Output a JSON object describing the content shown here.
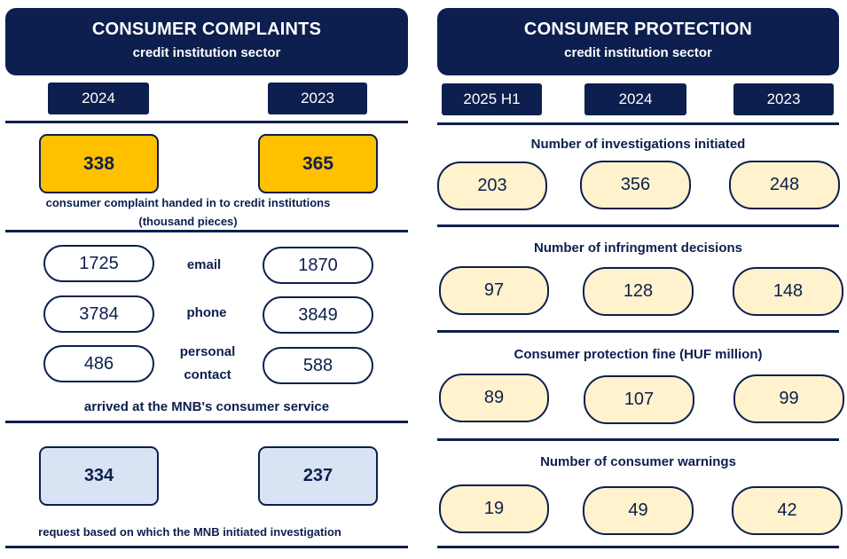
{
  "complaints": {
    "title": "CONSUMER COMPLAINTS",
    "subtitle": "credit institution sector",
    "years": [
      "2024",
      "2023"
    ],
    "handed_in": {
      "values": [
        "338",
        "365"
      ],
      "label_line1": "consumer complaint handed in to credit institutions",
      "label_line2": "(thousand pieces)",
      "color": "#ffc000"
    },
    "channels": [
      {
        "label": "email",
        "v2024": "1725",
        "v2023": "1870"
      },
      {
        "label": "phone",
        "v2024": "3784",
        "v2023": "3849"
      },
      {
        "label_line1": "personal",
        "label_line2": "contact",
        "v2024": "486",
        "v2023": "588"
      }
    ],
    "channels_caption": "arrived at the MNB's consumer service",
    "investigation": {
      "values": [
        "334",
        "237"
      ],
      "label": "request based on which the MNB initiated investigation",
      "color": "#dae3f3"
    }
  },
  "protection": {
    "title": "CONSUMER PROTECTION",
    "subtitle": "credit institution sector",
    "years": [
      "2025 H1",
      "2024",
      "2023"
    ],
    "sections": [
      {
        "label": "Number of investigations initiated",
        "values": [
          "203",
          "356",
          "248"
        ]
      },
      {
        "label": "Number of infringment decisions",
        "values": [
          "97",
          "128",
          "148"
        ]
      },
      {
        "label": "Consumer protection fine (HUF million)",
        "values": [
          "89",
          "107",
          "99"
        ]
      },
      {
        "label": "Number of consumer warnings",
        "values": [
          "19",
          "49",
          "42"
        ]
      }
    ],
    "color": "#fff2cc"
  },
  "colors": {
    "navy": "#0c1f4e"
  }
}
